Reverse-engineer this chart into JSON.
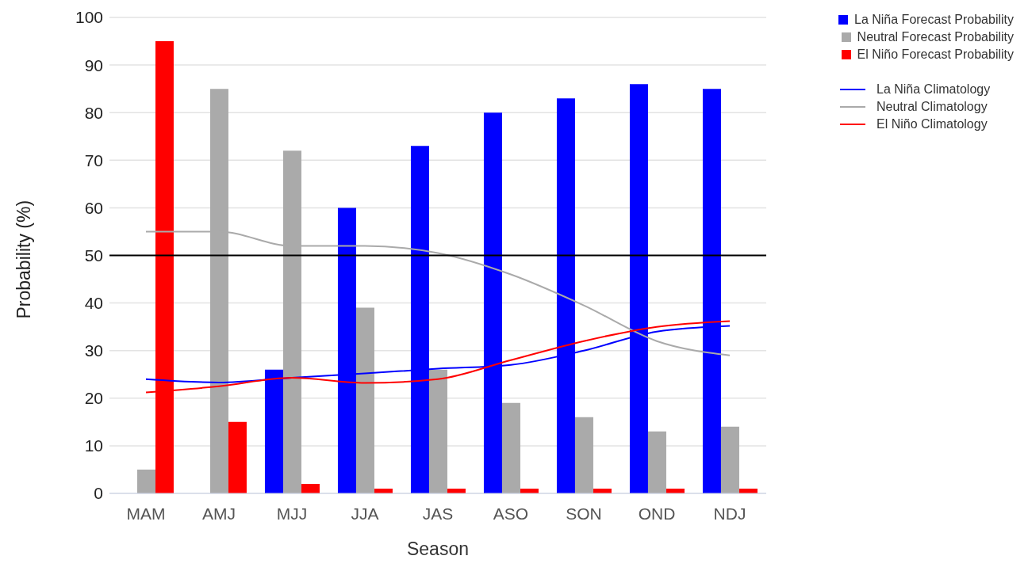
{
  "chart_data": {
    "type": "bar",
    "xlabel": "Season",
    "ylabel": "Probability (%)",
    "categories": [
      "MAM",
      "AMJ",
      "MJJ",
      "JJA",
      "JAS",
      "ASO",
      "SON",
      "OND",
      "NDJ"
    ],
    "series": [
      {
        "name": "La Niña Forecast Probability",
        "color": "#0000ff",
        "values": [
          0,
          0,
          26,
          60,
          73,
          80,
          83,
          86,
          85
        ]
      },
      {
        "name": "Neutral Forecast Probability",
        "color": "#aaaaaa",
        "values": [
          5,
          85,
          72,
          39,
          26,
          19,
          16,
          13,
          14
        ]
      },
      {
        "name": "El Niño Forecast Probability",
        "color": "#ff0000",
        "values": [
          95,
          15,
          2,
          1,
          1,
          1,
          1,
          1,
          1
        ]
      },
      {
        "name": "La Niña Climatology",
        "type": "line",
        "color": "#0000ff",
        "values": [
          24,
          23.3,
          24.3,
          25.2,
          26.2,
          27,
          30,
          34,
          35.2
        ]
      },
      {
        "name": "Neutral Climatology",
        "type": "line",
        "color": "#aaaaaa",
        "values": [
          55,
          55,
          52,
          52,
          50.5,
          46,
          39.5,
          32,
          29
        ]
      },
      {
        "name": "El Niño Climatology",
        "type": "line",
        "color": "#ff0000",
        "values": [
          21.2,
          22.5,
          24.3,
          23.2,
          24,
          28,
          32,
          35,
          36.2
        ]
      }
    ],
    "ylim": [
      0,
      100
    ],
    "yticks": [
      0,
      10,
      20,
      30,
      40,
      50,
      60,
      70,
      80,
      90,
      100
    ],
    "grid": "y",
    "legend": "top right",
    "marker": "none",
    "line_style": "solid",
    "ref_lines": [
      {
        "axis": "y",
        "value": 50,
        "color": "#000000"
      }
    ]
  }
}
